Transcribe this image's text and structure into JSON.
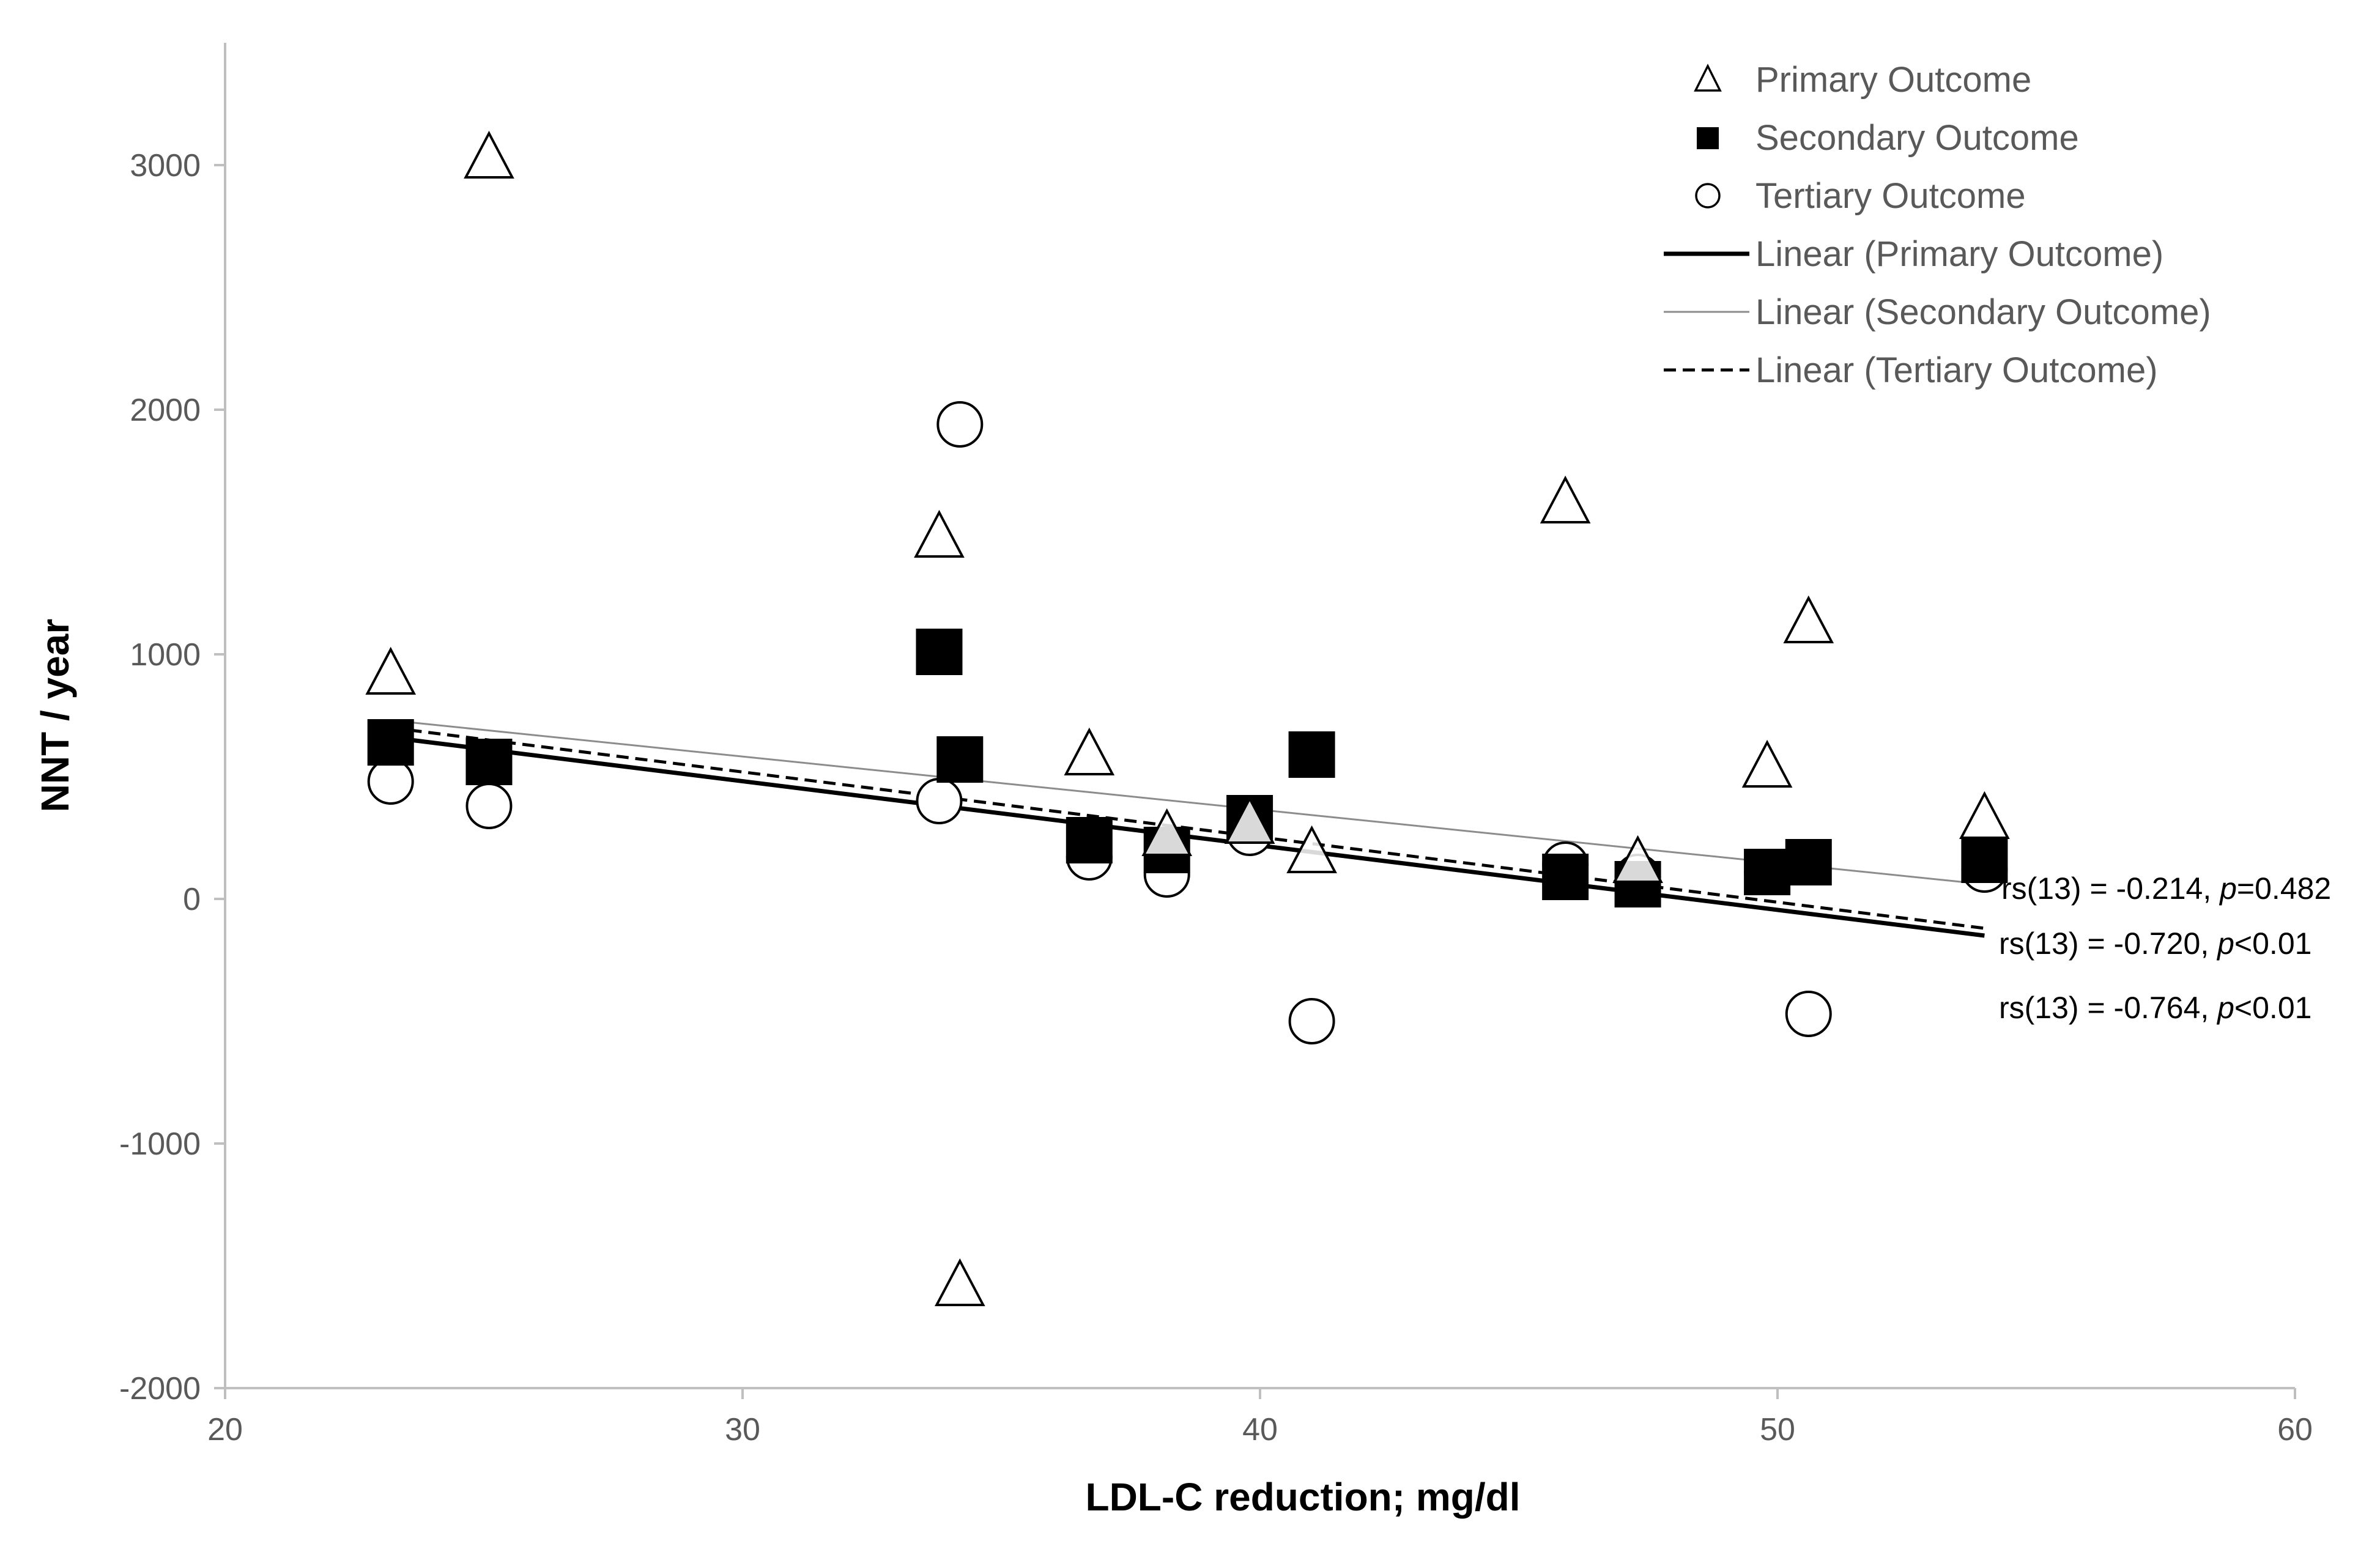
{
  "chart_data": {
    "type": "scatter",
    "xlabel": "LDL-C reduction; mg/dl",
    "ylabel": "NNT / year",
    "xlim": [
      20,
      60
    ],
    "ylim": [
      -2000,
      3500
    ],
    "x_ticks": [
      "20",
      "30",
      "40",
      "50",
      "60"
    ],
    "y_ticks": [
      "-2000",
      "-1000",
      "0",
      "1000",
      "2000",
      "3000"
    ],
    "grid": false,
    "legend_position": "top-right",
    "colors": {
      "primary": "#000000",
      "secondary": "#000000",
      "tertiary": "#000000",
      "secondary_trend": "#8c8c8c",
      "axis": "#bfbfbf"
    },
    "series": [
      {
        "name": "Primary Outcome",
        "marker": "triangle",
        "points": [
          [
            23.2,
            920
          ],
          [
            25.1,
            3030
          ],
          [
            33.8,
            1480
          ],
          [
            34.2,
            -1580
          ],
          [
            36.7,
            590
          ],
          [
            38.2,
            260
          ],
          [
            39.8,
            310
          ],
          [
            41.0,
            190
          ],
          [
            45.9,
            1620
          ],
          [
            47.3,
            150
          ],
          [
            49.8,
            540
          ],
          [
            50.6,
            1130
          ],
          [
            54.0,
            330
          ]
        ]
      },
      {
        "name": "Secondary Outcome",
        "marker": "square",
        "points": [
          [
            23.2,
            640
          ],
          [
            25.1,
            560
          ],
          [
            33.8,
            1010
          ],
          [
            34.2,
            570
          ],
          [
            36.7,
            240
          ],
          [
            38.2,
            200
          ],
          [
            39.8,
            330
          ],
          [
            41.0,
            590
          ],
          [
            45.9,
            90
          ],
          [
            47.3,
            60
          ],
          [
            49.8,
            110
          ],
          [
            50.6,
            150
          ],
          [
            54.0,
            160
          ]
        ]
      },
      {
        "name": "Tertiary Outcome",
        "marker": "circle",
        "points": [
          [
            23.2,
            480
          ],
          [
            25.1,
            380
          ],
          [
            33.8,
            400
          ],
          [
            34.2,
            1940
          ],
          [
            36.7,
            170
          ],
          [
            38.2,
            100
          ],
          [
            39.8,
            270
          ],
          [
            41.0,
            -500
          ],
          [
            45.9,
            140
          ],
          [
            47.3,
            90
          ],
          [
            49.8,
            110
          ],
          [
            50.6,
            -470
          ],
          [
            54.0,
            120
          ]
        ]
      }
    ],
    "trendlines": [
      {
        "name": "Linear (Primary Outcome)",
        "style": "solid-thick",
        "start": [
          23.2,
          660
        ],
        "end": [
          54.0,
          -150
        ]
      },
      {
        "name": "Linear (Secondary Outcome)",
        "style": "solid-thin",
        "start": [
          23.2,
          730
        ],
        "end": [
          54.0,
          60
        ]
      },
      {
        "name": "Linear (Tertiary Outcome)",
        "style": "dashed",
        "start": [
          23.2,
          700
        ],
        "end": [
          54.0,
          -120
        ]
      }
    ],
    "annotations": [
      {
        "pre": "rs(13) = -0.214, ",
        "p": "p",
        "post": "=0.482"
      },
      {
        "pre": "rs(13) = -0.720, ",
        "p": "p",
        "post": "<0.01"
      },
      {
        "pre": "rs(13) = -0.764, ",
        "p": "p",
        "post": "<0.01"
      }
    ]
  }
}
